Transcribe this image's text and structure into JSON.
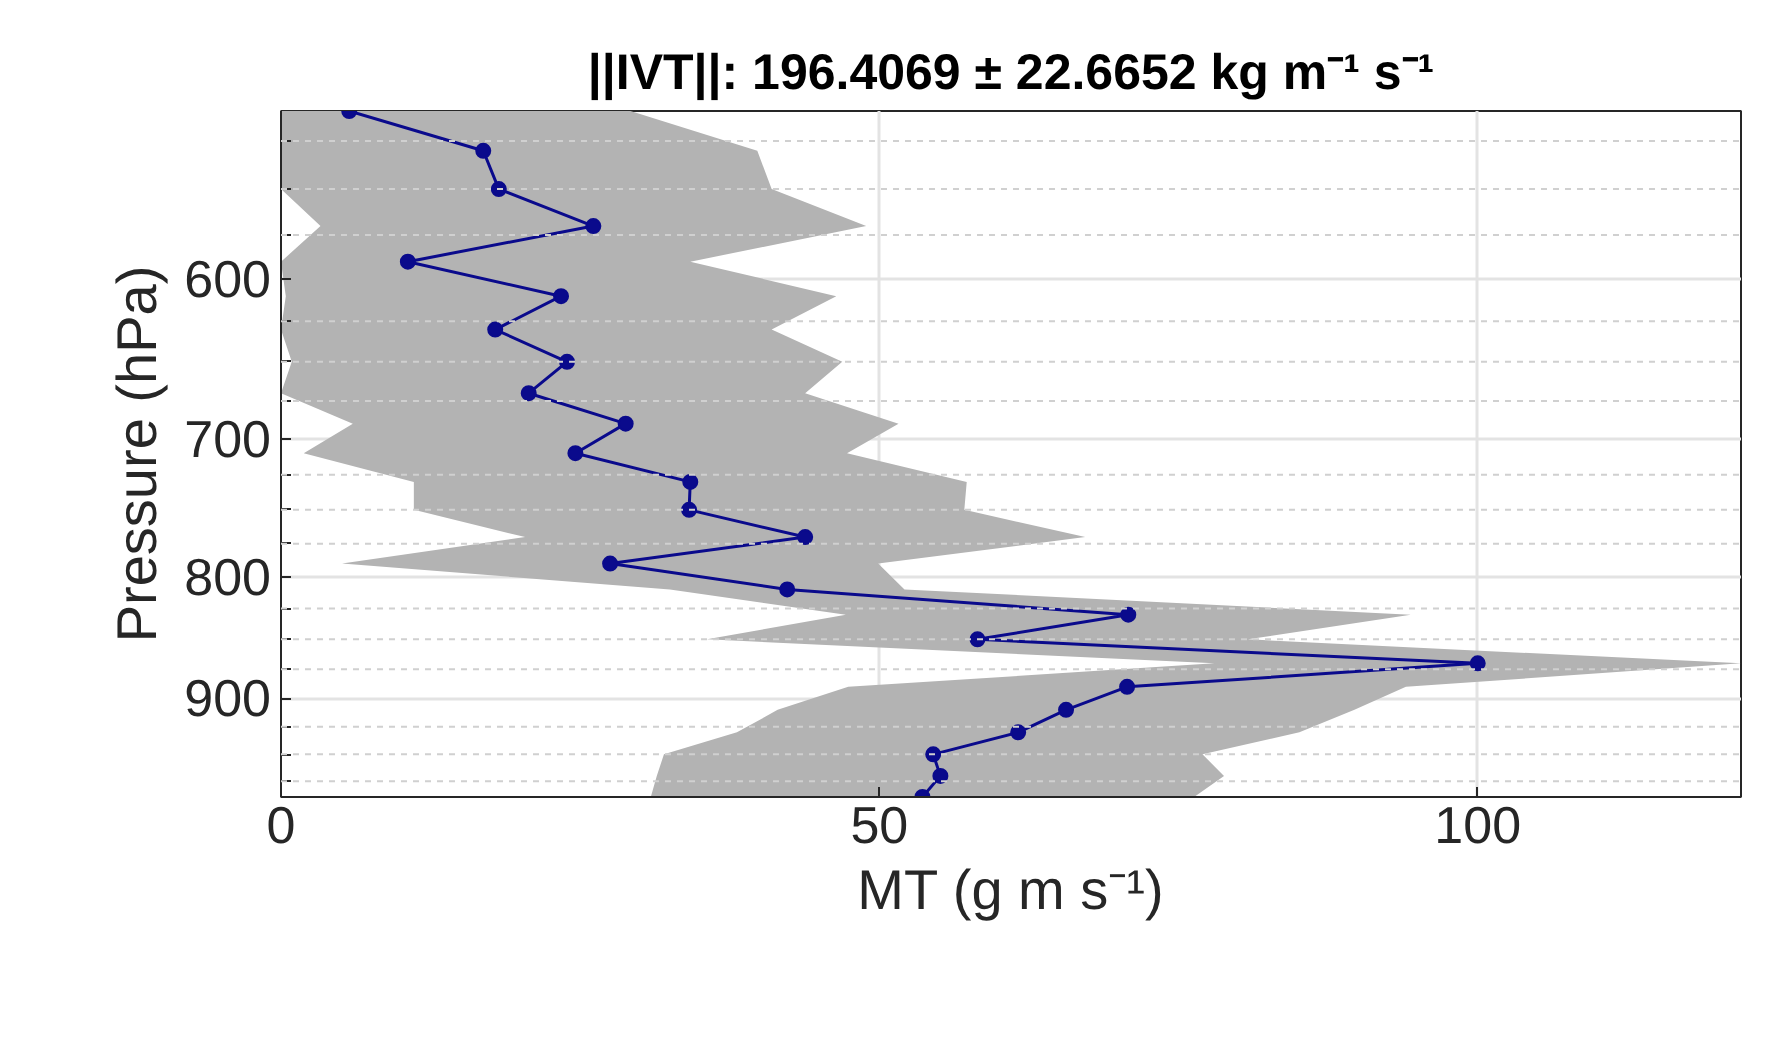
{
  "chart_data": {
    "type": "line",
    "title": "||IVT||: 196.4069 ± 22.6652 kg m⁻¹ s⁻¹",
    "xlabel": "MT (g m s⁻¹)",
    "ylabel": "Pressure (hPa)",
    "x": [
      510,
      530,
      550,
      570,
      590,
      610,
      630,
      650,
      670,
      690,
      710,
      730,
      750,
      770,
      790,
      810,
      830,
      850,
      870,
      890,
      910,
      930,
      950,
      970,
      990
    ],
    "series": [
      {
        "color": "#0a0a8c",
        "values": [
          5.7,
          16.9,
          18.2,
          26.1,
          10.6,
          23.4,
          17.9,
          23.9,
          20.7,
          28.8,
          24.6,
          34.2,
          34.1,
          43.8,
          27.5,
          42.3,
          70.8,
          58.2,
          100,
          70.7,
          65.6,
          61.6,
          54.5,
          55.1,
          53.6
        ],
        "lower": [
          0,
          0,
          0,
          3.3,
          0,
          0.4,
          0,
          0.9,
          0,
          6.0,
          1.9,
          11.1,
          11.1,
          20.4,
          5.1,
          32.5,
          47.2,
          35.6,
          78,
          47.4,
          41.5,
          38.1,
          32,
          31.4,
          30.9
        ],
        "upper": [
          29.2,
          39.8,
          41.0,
          48.9,
          34.2,
          46.4,
          41.0,
          46.9,
          43.8,
          51.6,
          47.3,
          57.3,
          57.1,
          67.2,
          49.9,
          52.1,
          94.4,
          80.8,
          122,
          94,
          89.7,
          85.1,
          77,
          78.8,
          76.3
        ]
      }
    ],
    "orientation": "horizontal",
    "log": "y",
    "marker": "circle",
    "line_style": "solid",
    "grid": true,
    "xlim": [
      0,
      122
    ],
    "xticks": [
      0,
      50,
      100
    ],
    "ylim": [
      990,
      510
    ],
    "yticks": [
      {
        "value": 525,
        "label": null
      },
      {
        "value": 550,
        "label": null
      },
      {
        "value": 575,
        "label": null
      },
      600,
      {
        "value": 625,
        "label": null
      },
      {
        "value": 650,
        "label": null
      },
      {
        "value": 675,
        "label": null
      },
      700,
      {
        "value": 725,
        "label": null
      },
      {
        "value": 750,
        "label": null
      },
      {
        "value": 775,
        "label": null
      },
      800,
      {
        "value": 825,
        "label": null
      },
      {
        "value": 850,
        "label": null
      },
      {
        "value": 875,
        "label": null
      },
      900,
      {
        "value": 925,
        "label": null
      },
      {
        "value": 950,
        "label": null
      },
      {
        "value": 975,
        "label": null
      }
    ]
  }
}
